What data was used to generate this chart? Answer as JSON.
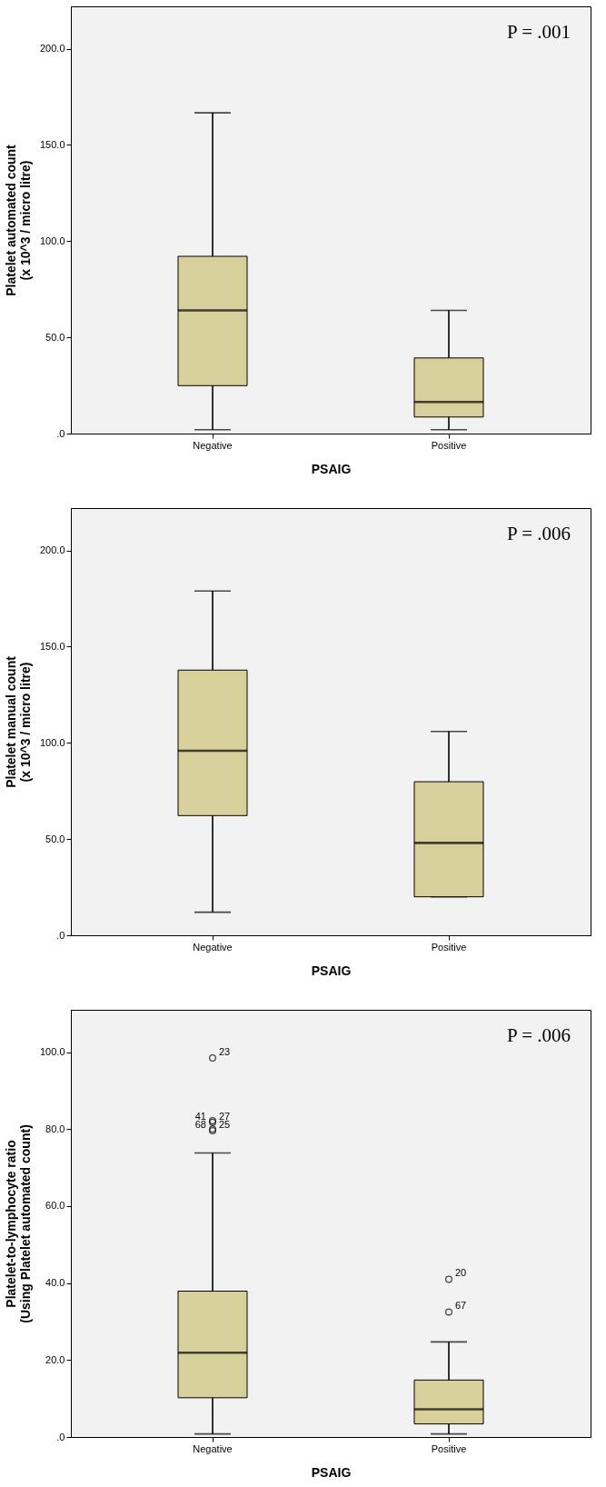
{
  "chart_data": [
    {
      "type": "box",
      "categories": [
        "Negative",
        "Positive"
      ],
      "xlabel": "PSAIG",
      "ylabel": "Platelet automated count\n(x 10^3 / micro litre)",
      "ylim": [
        0,
        222
      ],
      "yticks": [
        {
          "value": 0,
          "label": ".0"
        },
        {
          "value": 50,
          "label": "50.0"
        },
        {
          "value": 100,
          "label": "100.0"
        },
        {
          "value": 150,
          "label": "150.0"
        },
        {
          "value": 200,
          "label": "200.0"
        }
      ],
      "grid": false,
      "series": [
        {
          "color": "#d8d09b",
          "boxes": [
            {
              "low": 2,
              "q1": 24.9,
              "median": 64,
              "q3": 92.1,
              "high": 166.7
            },
            {
              "low": 2,
              "q1": 8.6,
              "median": 16.4,
              "q3": 39.3,
              "high": 64
            }
          ]
        }
      ],
      "annotations": [
        "P = .001"
      ]
    },
    {
      "type": "box",
      "categories": [
        "Negative",
        "Positive"
      ],
      "xlabel": "PSAIG",
      "ylabel": "Platelet manual count\n(x 10^3 / micro litre)",
      "ylim": [
        0,
        222
      ],
      "yticks": [
        {
          "value": 0,
          "label": ".0"
        },
        {
          "value": 50,
          "label": "50.0"
        },
        {
          "value": 100,
          "label": "100.0"
        },
        {
          "value": 150,
          "label": "150.0"
        },
        {
          "value": 200,
          "label": "200.0"
        }
      ],
      "grid": false,
      "series": [
        {
          "color": "#d8d09b",
          "boxes": [
            {
              "low": 12,
              "q1": 62.2,
              "median": 95.9,
              "q3": 137.8,
              "high": 178.9
            },
            {
              "low": 20,
              "q1": 20,
              "median": 48,
              "q3": 79.8,
              "high": 105.9
            }
          ]
        }
      ],
      "annotations": [
        "P = .006"
      ]
    },
    {
      "type": "box",
      "categories": [
        "Negative",
        "Positive"
      ],
      "xlabel": "PSAIG",
      "ylabel": "Platelet-to-lymphocyte ratio\n(Using Platelet automated count)",
      "ylim": [
        0,
        111
      ],
      "yticks": [
        {
          "value": 0,
          "label": ".0"
        },
        {
          "value": 20,
          "label": "20.0"
        },
        {
          "value": 40,
          "label": "40.0"
        },
        {
          "value": 60,
          "label": "60.0"
        },
        {
          "value": 80,
          "label": "80.0"
        },
        {
          "value": 100,
          "label": "100.0"
        }
      ],
      "grid": false,
      "series": [
        {
          "color": "#d8d09b",
          "boxes": [
            {
              "low": 0.8,
              "q1": 10.2,
              "median": 21.9,
              "q3": 37.9,
              "high": 73.8
            },
            {
              "low": 0.8,
              "q1": 3.4,
              "median": 7.2,
              "q3": 14.8,
              "high": 24.7
            }
          ]
        },
        {
          "type": "scatter",
          "color": "#000000",
          "marker": "circle",
          "x": [
            "Negative",
            "Negative",
            "Negative",
            "Negative",
            "Negative",
            "Positive",
            "Positive"
          ],
          "values": [
            98.5,
            82.2,
            81.8,
            80.0,
            79.6,
            41.0,
            32.5
          ]
        }
      ],
      "annotations": [
        "P = .006",
        {
          "text": "23",
          "x": "Negative",
          "y": 98.5
        },
        {
          "text": "27",
          "x": "Negative",
          "y": 81.8
        },
        {
          "text": "41",
          "x": "Negative",
          "y": 82.2
        },
        {
          "text": "25",
          "x": "Negative",
          "y": 79.6
        },
        {
          "text": "68",
          "x": "Negative",
          "y": 80.0
        },
        {
          "text": "20",
          "x": "Positive",
          "y": 41.0
        },
        {
          "text": "67",
          "x": "Positive",
          "y": 32.5
        }
      ]
    }
  ]
}
